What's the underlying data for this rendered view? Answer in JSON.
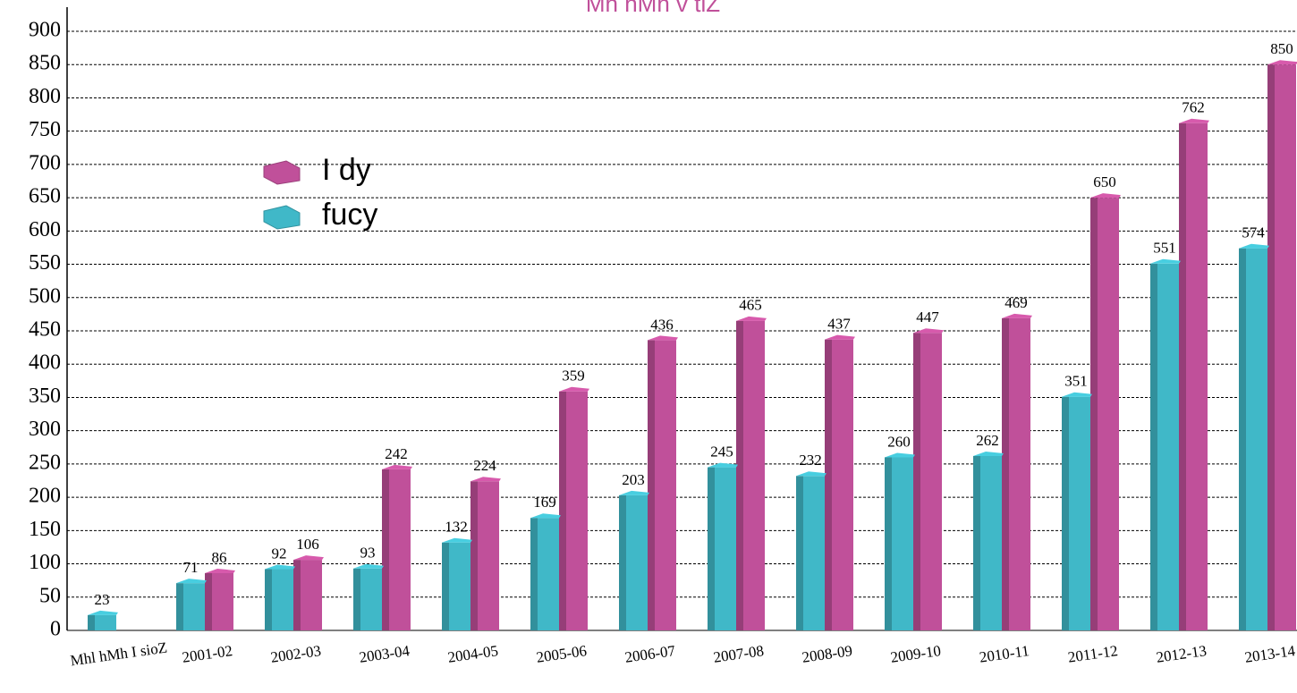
{
  "chart_data": {
    "type": "bar3d",
    "title": "Mh hMh v tlZ",
    "categories": [
      "Mhl hMh I sioZ",
      "2001-02",
      "2002-03",
      "2003-04",
      "2004-05",
      "2005-06",
      "2006-07",
      "2007-08",
      "2008-09",
      "2009-10",
      "2010-11",
      "2011-12",
      "2012-13",
      "2013-14"
    ],
    "series": [
      {
        "name": "I dy",
        "color": "#c0509a",
        "values": [
          null,
          86,
          106,
          242,
          224,
          359,
          436,
          465,
          437,
          447,
          469,
          650,
          762,
          850
        ]
      },
      {
        "name": "fucy",
        "color": "#40b8c8",
        "values": [
          23,
          71,
          92,
          93,
          132,
          169,
          203,
          245,
          232,
          260,
          262,
          351,
          551,
          574
        ]
      }
    ],
    "ylim": [
      0,
      900
    ],
    "yticks": [
      0,
      50,
      100,
      150,
      200,
      250,
      300,
      350,
      400,
      450,
      500,
      550,
      600,
      650,
      700,
      750,
      800,
      850,
      900
    ],
    "grid": true,
    "legend": "upper left"
  }
}
